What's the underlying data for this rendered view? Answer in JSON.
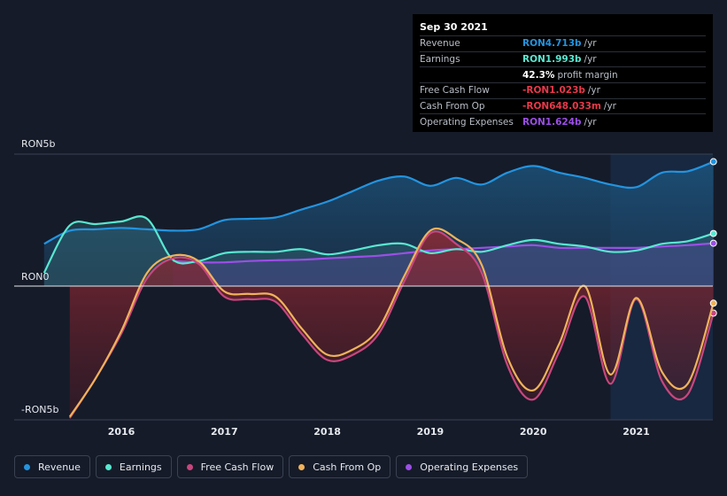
{
  "chart_data": {
    "type": "area",
    "y_axis": {
      "labels": [
        "RON5b",
        "RON0",
        "-RON5b"
      ],
      "ylim": [
        -5,
        5
      ],
      "unit": "RON b"
    },
    "x_axis": {
      "ticks": [
        2016,
        2017,
        2018,
        2019,
        2020,
        2021
      ],
      "xlim": [
        2015.25,
        2021.78
      ]
    },
    "forecast_start": 2020.75,
    "series": [
      {
        "name": "Revenue",
        "color": "#2394df",
        "points": [
          [
            2015.25,
            1.6
          ],
          [
            2015.5,
            2.1
          ],
          [
            2015.75,
            2.15
          ],
          [
            2016,
            2.2
          ],
          [
            2016.25,
            2.15
          ],
          [
            2016.5,
            2.1
          ],
          [
            2016.75,
            2.15
          ],
          [
            2017,
            2.5
          ],
          [
            2017.25,
            2.55
          ],
          [
            2017.5,
            2.6
          ],
          [
            2017.75,
            2.9
          ],
          [
            2018,
            3.2
          ],
          [
            2018.25,
            3.6
          ],
          [
            2018.5,
            4.0
          ],
          [
            2018.75,
            4.15
          ],
          [
            2019,
            3.8
          ],
          [
            2019.25,
            4.1
          ],
          [
            2019.5,
            3.85
          ],
          [
            2019.75,
            4.3
          ],
          [
            2020,
            4.55
          ],
          [
            2020.25,
            4.3
          ],
          [
            2020.5,
            4.1
          ],
          [
            2020.75,
            3.85
          ],
          [
            2021,
            3.75
          ],
          [
            2021.25,
            4.3
          ],
          [
            2021.5,
            4.35
          ],
          [
            2021.75,
            4.713
          ]
        ]
      },
      {
        "name": "Earnings",
        "color": "#58e8d1",
        "points": [
          [
            2015.25,
            0.5
          ],
          [
            2015.5,
            2.3
          ],
          [
            2015.75,
            2.35
          ],
          [
            2016,
            2.45
          ],
          [
            2016.25,
            2.55
          ],
          [
            2016.5,
            1.0
          ],
          [
            2016.75,
            0.95
          ],
          [
            2017,
            1.25
          ],
          [
            2017.25,
            1.3
          ],
          [
            2017.5,
            1.3
          ],
          [
            2017.75,
            1.4
          ],
          [
            2018,
            1.2
          ],
          [
            2018.25,
            1.35
          ],
          [
            2018.5,
            1.55
          ],
          [
            2018.75,
            1.6
          ],
          [
            2019,
            1.25
          ],
          [
            2019.25,
            1.4
          ],
          [
            2019.5,
            1.3
          ],
          [
            2019.75,
            1.55
          ],
          [
            2020,
            1.75
          ],
          [
            2020.25,
            1.6
          ],
          [
            2020.5,
            1.5
          ],
          [
            2020.75,
            1.3
          ],
          [
            2021,
            1.35
          ],
          [
            2021.25,
            1.6
          ],
          [
            2021.5,
            1.7
          ],
          [
            2021.75,
            1.993
          ]
        ]
      },
      {
        "name": "Free Cash Flow",
        "color": "#c8467e",
        "points": [
          [
            2015.5,
            -5.0
          ],
          [
            2015.75,
            -3.5
          ],
          [
            2016,
            -1.8
          ],
          [
            2016.25,
            0.3
          ],
          [
            2016.5,
            1.05
          ],
          [
            2016.75,
            0.85
          ],
          [
            2017,
            -0.4
          ],
          [
            2017.25,
            -0.5
          ],
          [
            2017.5,
            -0.6
          ],
          [
            2017.75,
            -1.8
          ],
          [
            2018,
            -2.8
          ],
          [
            2018.25,
            -2.6
          ],
          [
            2018.5,
            -1.8
          ],
          [
            2018.75,
            0.2
          ],
          [
            2019,
            2.0
          ],
          [
            2019.25,
            1.6
          ],
          [
            2019.5,
            0.5
          ],
          [
            2019.75,
            -3.0
          ],
          [
            2020,
            -4.3
          ],
          [
            2020.25,
            -2.5
          ],
          [
            2020.5,
            -0.4
          ],
          [
            2020.75,
            -3.7
          ],
          [
            2021,
            -0.5
          ],
          [
            2021.25,
            -3.6
          ],
          [
            2021.5,
            -4.1
          ],
          [
            2021.75,
            -1.023
          ]
        ]
      },
      {
        "name": "Cash From Op",
        "color": "#f0b35a",
        "points": [
          [
            2015.5,
            -4.95
          ],
          [
            2015.75,
            -3.5
          ],
          [
            2016,
            -1.7
          ],
          [
            2016.25,
            0.5
          ],
          [
            2016.5,
            1.15
          ],
          [
            2016.75,
            0.95
          ],
          [
            2017,
            -0.2
          ],
          [
            2017.25,
            -0.3
          ],
          [
            2017.5,
            -0.4
          ],
          [
            2017.75,
            -1.6
          ],
          [
            2018,
            -2.6
          ],
          [
            2018.25,
            -2.4
          ],
          [
            2018.5,
            -1.6
          ],
          [
            2018.75,
            0.4
          ],
          [
            2019,
            2.1
          ],
          [
            2019.25,
            1.8
          ],
          [
            2019.5,
            0.8
          ],
          [
            2019.75,
            -2.7
          ],
          [
            2020,
            -3.95
          ],
          [
            2020.25,
            -2.2
          ],
          [
            2020.5,
            0.0
          ],
          [
            2020.75,
            -3.35
          ],
          [
            2021,
            -0.45
          ],
          [
            2021.25,
            -3.25
          ],
          [
            2021.5,
            -3.7
          ],
          [
            2021.75,
            -0.648
          ]
        ]
      },
      {
        "name": "Operating Expenses",
        "color": "#9b4fe6",
        "points": [
          [
            2016.5,
            0.95
          ],
          [
            2016.75,
            0.9
          ],
          [
            2017,
            0.9
          ],
          [
            2017.25,
            0.95
          ],
          [
            2017.5,
            0.98
          ],
          [
            2017.75,
            1.0
          ],
          [
            2018,
            1.05
          ],
          [
            2018.25,
            1.1
          ],
          [
            2018.5,
            1.15
          ],
          [
            2018.75,
            1.25
          ],
          [
            2019,
            1.35
          ],
          [
            2019.25,
            1.4
          ],
          [
            2019.5,
            1.45
          ],
          [
            2019.75,
            1.5
          ],
          [
            2020,
            1.55
          ],
          [
            2020.25,
            1.45
          ],
          [
            2020.5,
            1.45
          ],
          [
            2020.75,
            1.45
          ],
          [
            2021,
            1.45
          ],
          [
            2021.25,
            1.5
          ],
          [
            2021.5,
            1.55
          ],
          [
            2021.75,
            1.624
          ]
        ]
      }
    ]
  },
  "tooltip": {
    "date": "Sep 30 2021",
    "rows": [
      {
        "label": "Revenue",
        "value": "RON4.713b",
        "unit": "/yr",
        "color": "#2394df"
      },
      {
        "label": "Earnings",
        "value": "RON1.993b",
        "unit": "/yr",
        "color": "#58e8d1"
      },
      {
        "label": "",
        "value": "42.3%",
        "unit": "profit margin",
        "color": "#ffffff"
      },
      {
        "label": "Free Cash Flow",
        "value": "-RON1.023b",
        "unit": "/yr",
        "color": "#e8394a"
      },
      {
        "label": "Cash From Op",
        "value": "-RON648.033m",
        "unit": "/yr",
        "color": "#e8394a"
      },
      {
        "label": "Operating Expenses",
        "value": "RON1.624b",
        "unit": "/yr",
        "color": "#9b4fe6"
      }
    ]
  },
  "legend": [
    {
      "label": "Revenue",
      "color": "#2394df"
    },
    {
      "label": "Earnings",
      "color": "#58e8d1"
    },
    {
      "label": "Free Cash Flow",
      "color": "#c8467e"
    },
    {
      "label": "Cash From Op",
      "color": "#f0b35a"
    },
    {
      "label": "Operating Expenses",
      "color": "#9b4fe6"
    }
  ]
}
